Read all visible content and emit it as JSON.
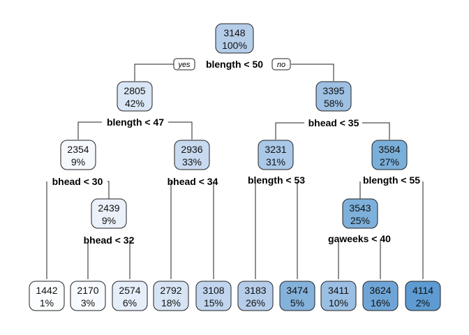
{
  "tree": {
    "edge_labels": {
      "yes": "yes",
      "no": "no"
    },
    "nodes": [
      {
        "id": "n1",
        "value": "3148",
        "pct": "100%",
        "fill": "#b5cde9"
      },
      {
        "id": "n2",
        "value": "2805",
        "pct": "42%",
        "fill": "#d9e6f5"
      },
      {
        "id": "n3",
        "value": "3395",
        "pct": "58%",
        "fill": "#9dc0e3"
      },
      {
        "id": "n4",
        "value": "2354",
        "pct": "9%",
        "fill": "#f5f8fd"
      },
      {
        "id": "n5",
        "value": "2936",
        "pct": "33%",
        "fill": "#c8daef"
      },
      {
        "id": "n6",
        "value": "3231",
        "pct": "31%",
        "fill": "#aac8e7"
      },
      {
        "id": "n7",
        "value": "3584",
        "pct": "27%",
        "fill": "#7aafd9"
      },
      {
        "id": "n8",
        "value": "2439",
        "pct": "9%",
        "fill": "#eaf1fa"
      },
      {
        "id": "n9",
        "value": "3543",
        "pct": "25%",
        "fill": "#7db0da"
      },
      {
        "id": "l1",
        "value": "1442",
        "pct": "1%",
        "fill": "#fcfdff"
      },
      {
        "id": "l2",
        "value": "2170",
        "pct": "3%",
        "fill": "#f7fafe"
      },
      {
        "id": "l3",
        "value": "2574",
        "pct": "6%",
        "fill": "#e6eef9"
      },
      {
        "id": "l4",
        "value": "2792",
        "pct": "18%",
        "fill": "#d7e4f4"
      },
      {
        "id": "l5",
        "value": "3108",
        "pct": "15%",
        "fill": "#c1d6ee"
      },
      {
        "id": "l6",
        "value": "3183",
        "pct": "26%",
        "fill": "#b6cde9"
      },
      {
        "id": "l7",
        "value": "3474",
        "pct": "5%",
        "fill": "#84b2db"
      },
      {
        "id": "l8",
        "value": "3411",
        "pct": "10%",
        "fill": "#9bbfe3"
      },
      {
        "id": "l9",
        "value": "3624",
        "pct": "16%",
        "fill": "#6fa5d6"
      },
      {
        "id": "l10",
        "value": "4114",
        "pct": "2%",
        "fill": "#5d9bd2"
      }
    ],
    "splits": [
      {
        "id": "s1",
        "label": "blength < 50"
      },
      {
        "id": "s2",
        "label": "blength < 47"
      },
      {
        "id": "s3",
        "label": "bhead < 35"
      },
      {
        "id": "s4",
        "label": "bhead < 30"
      },
      {
        "id": "s5",
        "label": "bhead < 34"
      },
      {
        "id": "s6",
        "label": "blength < 53"
      },
      {
        "id": "s7",
        "label": "blength < 55"
      },
      {
        "id": "s8",
        "label": "bhead < 32"
      },
      {
        "id": "s9",
        "label": "gaweeks < 40"
      }
    ]
  }
}
